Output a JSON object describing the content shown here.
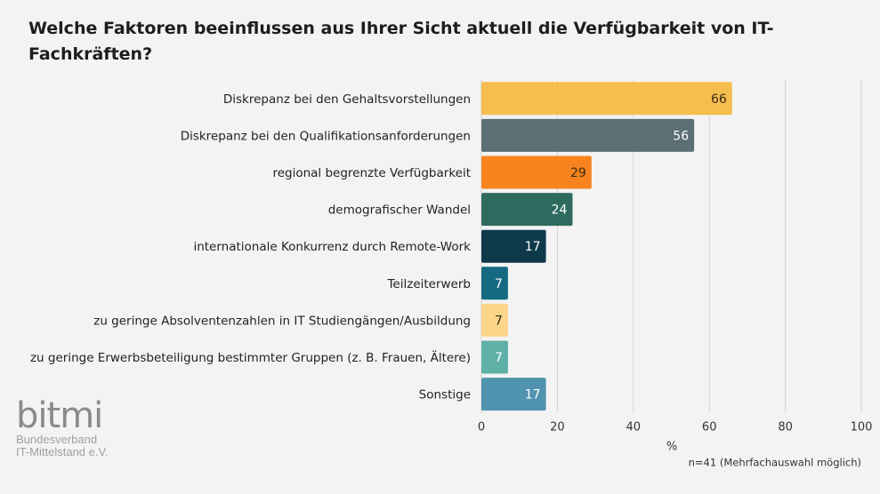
{
  "chart_data": {
    "type": "bar",
    "orientation": "horizontal",
    "title": "Welche Faktoren beeinflussen aus Ihrer Sicht aktuell die Verfügbarkeit von IT-Fachkräften?",
    "categories": [
      "Diskrepanz bei den Gehaltsvorstellungen",
      "Diskrepanz bei den Qualifikationsanforderungen",
      "regional begrenzte Verfügbarkeit",
      "demografischer Wandel",
      "internationale Konkurrenz durch Remote-Work",
      "Teilzeiterwerb",
      "zu geringe Absolventenzahlen in IT Studiengängen/Ausbildung",
      "zu geringe Erwerbsbeteiligung bestimmter Gruppen (z. B. Frauen, Ältere)",
      "Sonstige"
    ],
    "values": [
      66,
      56,
      29,
      24,
      17,
      7,
      7,
      7,
      17
    ],
    "colors": [
      "#f6be4f",
      "#5b6f74",
      "#f7841f",
      "#2e6b5e",
      "#0f3a4c",
      "#136a82",
      "#fcd58a",
      "#5fb0a6",
      "#4f93ae"
    ],
    "label_colors": [
      "#3a2a10",
      "#ffffff",
      "#3a2a10",
      "#ffffff",
      "#ffffff",
      "#ffffff",
      "#3a2a10",
      "#ffffff",
      "#ffffff"
    ],
    "xlim": [
      0,
      100
    ],
    "xticks": [
      0,
      20,
      40,
      60,
      80,
      100
    ],
    "xlabel": "%",
    "grid": true,
    "note": "n=41 (Mehrfachauswahl möglich)"
  },
  "logo": {
    "mark": "bitmi",
    "line1": "Bundesverband",
    "line2": "IT-Mittelstand e.V."
  }
}
